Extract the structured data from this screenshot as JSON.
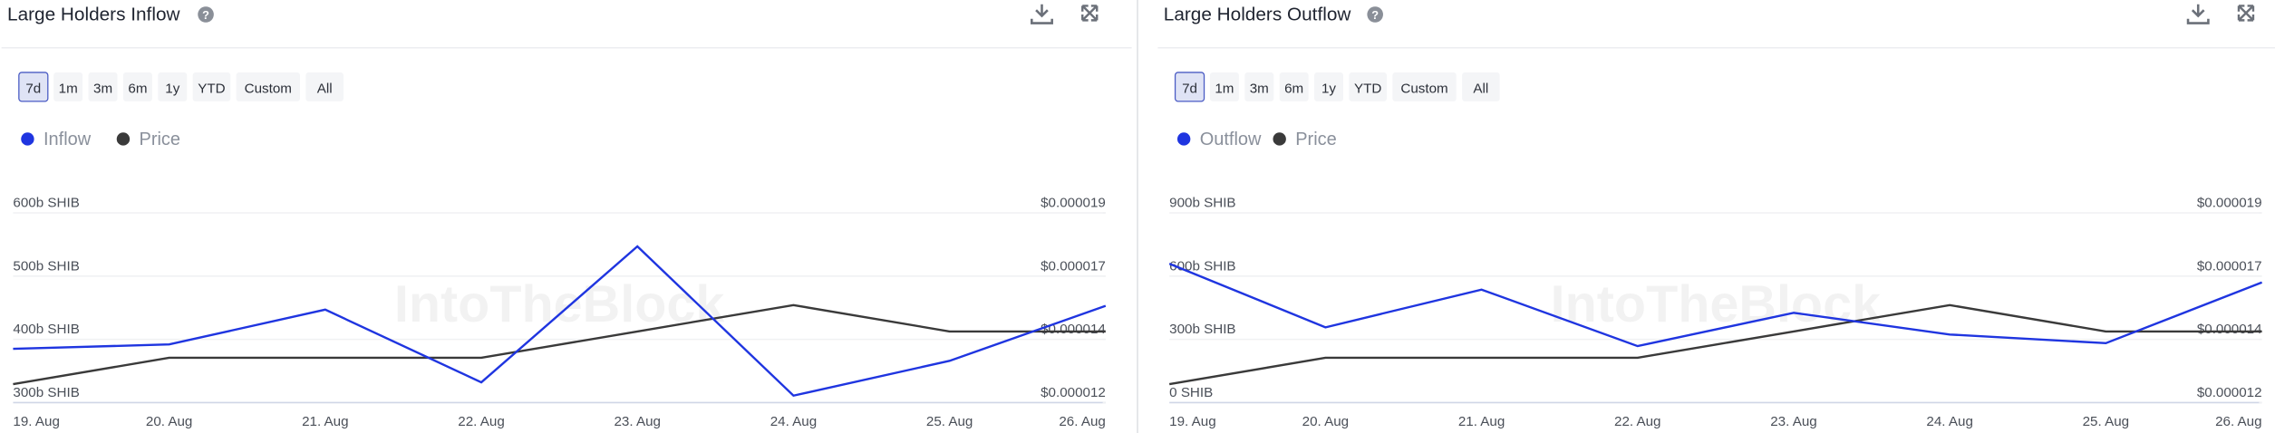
{
  "chart_data": [
    {
      "type": "line",
      "title": "Large Holders Inflow",
      "range_buttons": [
        "7d",
        "1m",
        "3m",
        "6m",
        "1y",
        "YTD",
        "Custom",
        "All"
      ],
      "watermark": "IntoTheBlock",
      "categories": [
        "19. Aug",
        "20. Aug",
        "21. Aug",
        "22. Aug",
        "23. Aug",
        "24. Aug",
        "25. Aug",
        "26. Aug"
      ],
      "series": [
        {
          "name": "Inflow",
          "color": "#1f35e0",
          "values": [
            385,
            392,
            447,
            332,
            547,
            311,
            366,
            453
          ]
        },
        {
          "name": "Price",
          "color": "#3a3a3a",
          "axis": "y2",
          "values": [
            1.25e-05,
            1.35e-05,
            1.35e-05,
            1.35e-05,
            1.45e-05,
            1.55e-05,
            1.45e-05,
            1.45e-05
          ]
        }
      ],
      "ylim": [
        300,
        600
      ],
      "yticks": [
        {
          "value": 300,
          "label": "300b SHIB"
        },
        {
          "value": 400,
          "label": "400b SHIB"
        },
        {
          "value": 500,
          "label": "500b SHIB"
        },
        {
          "value": 600,
          "label": "600b SHIB"
        }
      ],
      "y2lim": [
        1.18e-05,
        1.9e-05
      ],
      "y2ticks": [
        {
          "value": 1.18e-05,
          "label": "$0.000012"
        },
        {
          "value": 1.42e-05,
          "label": "$0.000014"
        },
        {
          "value": 1.66e-05,
          "label": "$0.000017"
        },
        {
          "value": 1.9e-05,
          "label": "$0.000019"
        }
      ],
      "grid": true
    },
    {
      "type": "line",
      "title": "Large Holders Outflow",
      "range_buttons": [
        "7d",
        "1m",
        "3m",
        "6m",
        "1y",
        "YTD",
        "Custom",
        "All"
      ],
      "watermark": "IntoTheBlock",
      "categories": [
        "19. Aug",
        "20. Aug",
        "21. Aug",
        "22. Aug",
        "23. Aug",
        "24. Aug",
        "25. Aug",
        "26. Aug"
      ],
      "series": [
        {
          "name": "Outflow",
          "color": "#1f35e0",
          "values": [
            659,
            357,
            536,
            268,
            426,
            323,
            282,
            570
          ]
        },
        {
          "name": "Price",
          "color": "#3a3a3a",
          "axis": "y2",
          "values": [
            1.25e-05,
            1.35e-05,
            1.35e-05,
            1.35e-05,
            1.45e-05,
            1.55e-05,
            1.45e-05,
            1.45e-05
          ]
        }
      ],
      "ylim": [
        0,
        900
      ],
      "yticks": [
        {
          "value": 0,
          "label": "0 SHIB"
        },
        {
          "value": 300,
          "label": "300b SHIB"
        },
        {
          "value": 600,
          "label": "600b SHIB"
        },
        {
          "value": 900,
          "label": "900b SHIB"
        }
      ],
      "y2lim": [
        1.18e-05,
        1.9e-05
      ],
      "y2ticks": [
        {
          "value": 1.18e-05,
          "label": "$0.000012"
        },
        {
          "value": 1.42e-05,
          "label": "$0.000014"
        },
        {
          "value": 1.66e-05,
          "label": "$0.000017"
        },
        {
          "value": 1.9e-05,
          "label": "$0.000019"
        }
      ],
      "grid": true
    }
  ]
}
